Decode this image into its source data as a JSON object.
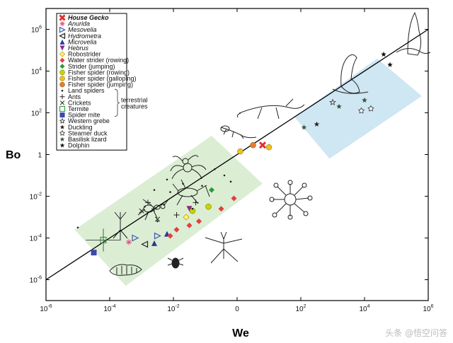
{
  "chart_data": {
    "type": "scatter",
    "xlabel": "We",
    "ylabel": "Bo",
    "xscale": "log",
    "yscale": "log",
    "xlim_exp": [
      -6,
      6
    ],
    "ylim_exp": [
      -7,
      7
    ],
    "x_tick_labels": [
      {
        "base": "10",
        "exp": "-6",
        "value_exp": -6
      },
      {
        "base": "10",
        "exp": "-4",
        "value_exp": -4
      },
      {
        "base": "10",
        "exp": "-2",
        "value_exp": -2
      },
      {
        "base": "0",
        "exp": "",
        "value_exp": 0
      },
      {
        "base": "10",
        "exp": "2",
        "value_exp": 2
      },
      {
        "base": "10",
        "exp": "4",
        "value_exp": 4
      },
      {
        "base": "10",
        "exp": "6",
        "value_exp": 6
      }
    ],
    "y_tick_labels": [
      {
        "base": "10",
        "exp": "6",
        "value_exp": 6
      },
      {
        "base": "10",
        "exp": "4",
        "value_exp": 4
      },
      {
        "base": "10",
        "exp": "2",
        "value_exp": 2
      },
      {
        "base": "1",
        "exp": "",
        "value_exp": 0
      },
      {
        "base": "10",
        "exp": "-2",
        "value_exp": -2
      },
      {
        "base": "10",
        "exp": "-4",
        "value_exp": -4
      },
      {
        "base": "10",
        "exp": "-6",
        "value_exp": -6
      }
    ],
    "trend_line": {
      "slope": 1,
      "intercept": 0
    },
    "regions": [
      {
        "name": "terrestrial",
        "color": "#dbeed4",
        "corners": [
          [
            -5.1,
            -3.6
          ],
          [
            -0.8,
            0.9
          ],
          [
            0.8,
            -1.4
          ],
          [
            -3.5,
            -6.3
          ]
        ]
      },
      {
        "name": "aquatic-large",
        "color": "#cfe6f3",
        "corners": [
          [
            1.8,
            1.8
          ],
          [
            4.4,
            4.6
          ],
          [
            5.8,
            2.8
          ],
          [
            2.9,
            -0.2
          ]
        ]
      }
    ],
    "legend": [
      {
        "label": "House Gecko",
        "style": "bi",
        "marker": "x-bold",
        "color": "#e03030"
      },
      {
        "label": "Anurida",
        "style": "it",
        "marker": "asterisk",
        "color": "#e05080"
      },
      {
        "label": "Mesovelia",
        "style": "it",
        "marker": "tri-right-open",
        "color": "#3a5aa8"
      },
      {
        "label": "Hydrometra",
        "style": "it",
        "marker": "tri-left-open",
        "color": "#222222"
      },
      {
        "label": "Microvelia",
        "style": "it",
        "marker": "tri-up",
        "color": "#2b3a8f"
      },
      {
        "label": "Hebrus",
        "style": "it",
        "marker": "tri-down",
        "color": "#8a2a8a"
      },
      {
        "label": "Robostrider",
        "style": "",
        "marker": "diamond-open",
        "color": "#d4b000"
      },
      {
        "label": "Water strider (rowing)",
        "style": "",
        "marker": "diamond",
        "color": "#e04040"
      },
      {
        "label": "Strider (jumping)",
        "style": "",
        "marker": "diamond",
        "color": "#2e9a3a"
      },
      {
        "label": "Fisher spider (rowing)",
        "style": "",
        "marker": "circle",
        "color": "#c8d400"
      },
      {
        "label": "Fisher spider (galloping)",
        "style": "",
        "marker": "circle",
        "color": "#f0c020"
      },
      {
        "label": "Fisher spider (jumping)",
        "style": "",
        "marker": "circle",
        "color": "#f07830"
      },
      {
        "label": "Land spiders",
        "style": "",
        "marker": "dot",
        "color": "#222222"
      },
      {
        "label": "Ants",
        "style": "",
        "marker": "plus",
        "color": "#222222"
      },
      {
        "label": "Crickets",
        "style": "",
        "marker": "cross",
        "color": "#222222"
      },
      {
        "label": "Termite",
        "style": "",
        "marker": "square-open",
        "color": "#3aa040"
      },
      {
        "label": "Spider mite",
        "style": "",
        "marker": "square",
        "color": "#3a4aa8"
      },
      {
        "label": "Western grebe",
        "style": "",
        "marker": "star-open",
        "color": "#444444"
      },
      {
        "label": "Duckling",
        "style": "",
        "marker": "star-black",
        "color": "#222222"
      },
      {
        "label": "Steamer duck",
        "style": "",
        "marker": "star-outline",
        "color": "#444444"
      },
      {
        "label": "Basilisk lizard",
        "style": "",
        "marker": "star-dark",
        "color": "#3a5a3a"
      },
      {
        "label": "Dolphin",
        "style": "",
        "marker": "star-black",
        "color": "#111111"
      }
    ],
    "legend_bracket_label": [
      "terrestrial",
      "creatures"
    ],
    "series": [
      {
        "name": "House Gecko",
        "points": [
          [
            0.8,
            0.45
          ]
        ]
      },
      {
        "name": "Anurida",
        "points": [
          [
            -3.4,
            -4.2
          ]
        ]
      },
      {
        "name": "Mesovelia",
        "points": [
          [
            -3.2,
            -4.0
          ],
          [
            -2.5,
            -3.9
          ]
        ]
      },
      {
        "name": "Hydrometra",
        "points": [
          [
            -2.9,
            -4.3
          ]
        ]
      },
      {
        "name": "Microvelia",
        "points": [
          [
            -2.6,
            -4.25
          ],
          [
            -2.2,
            -3.8
          ]
        ]
      },
      {
        "name": "Hebrus",
        "points": [
          [
            -1.5,
            -2.6
          ]
        ]
      },
      {
        "name": "Robostrider",
        "points": [
          [
            -1.6,
            -3.0
          ]
        ]
      },
      {
        "name": "Water strider (rowing)",
        "points": [
          [
            -1.5,
            -3.4
          ],
          [
            -1.2,
            -3.2
          ],
          [
            -0.5,
            -2.6
          ],
          [
            -0.1,
            -2.1
          ],
          [
            -1.9,
            -3.6
          ],
          [
            -2.1,
            -3.9
          ]
        ]
      },
      {
        "name": "Strider (jumping)",
        "points": [
          [
            -0.8,
            -1.7
          ]
        ]
      },
      {
        "name": "Fisher spider (rowing)",
        "points": [
          [
            -1.4,
            -2.7
          ],
          [
            -0.9,
            -2.5
          ]
        ]
      },
      {
        "name": "Fisher spider (galloping)",
        "points": [
          [
            0.1,
            0.15
          ],
          [
            1.0,
            0.35
          ]
        ]
      },
      {
        "name": "Fisher spider (jumping)",
        "points": [
          [
            0.5,
            0.45
          ]
        ]
      },
      {
        "name": "Land spiders",
        "points": [
          [
            -5.0,
            -3.5
          ],
          [
            -2.6,
            -1.7
          ],
          [
            -2.2,
            -1.2
          ],
          [
            -2.1,
            -1.8
          ],
          [
            -1.7,
            -1.4
          ],
          [
            -1.4,
            -2.6
          ],
          [
            -2.3,
            -2.4
          ],
          [
            -1.1,
            -1.5
          ],
          [
            -0.4,
            -1.0
          ],
          [
            -0.7,
            -0.7
          ],
          [
            -0.2,
            -1.3
          ],
          [
            -2.5,
            -3.2
          ],
          [
            -2.9,
            -2.5
          ]
        ]
      },
      {
        "name": "Ants",
        "points": [
          [
            -2.8,
            -2.3
          ],
          [
            -2.6,
            -2.6
          ],
          [
            -1.3,
            -2.3
          ],
          [
            -1.9,
            -2.9
          ]
        ]
      },
      {
        "name": "Crickets",
        "points": [
          [
            -3.0,
            -2.7
          ],
          [
            -2.5,
            -3.1
          ]
        ]
      },
      {
        "name": "Termite",
        "points": [
          [
            -4.2,
            -4.1
          ]
        ]
      },
      {
        "name": "Spider mite",
        "points": [
          [
            -4.5,
            -4.7
          ]
        ]
      },
      {
        "name": "Western grebe",
        "points": [
          [
            3.0,
            2.5
          ]
        ]
      },
      {
        "name": "Duckling",
        "points": [
          [
            2.5,
            1.45
          ]
        ]
      },
      {
        "name": "Steamer duck",
        "points": [
          [
            3.9,
            2.1
          ],
          [
            4.2,
            2.2
          ]
        ]
      },
      {
        "name": "Basilisk lizard",
        "points": [
          [
            2.1,
            1.3
          ],
          [
            3.2,
            2.3
          ],
          [
            4.0,
            2.6
          ]
        ]
      },
      {
        "name": "Dolphin",
        "points": [
          [
            4.6,
            4.8
          ],
          [
            4.8,
            4.3
          ]
        ]
      }
    ]
  },
  "watermark": "头条 @悟空问答",
  "colors": {
    "frame": "#000000",
    "line": "#000000",
    "text": "#111111"
  }
}
